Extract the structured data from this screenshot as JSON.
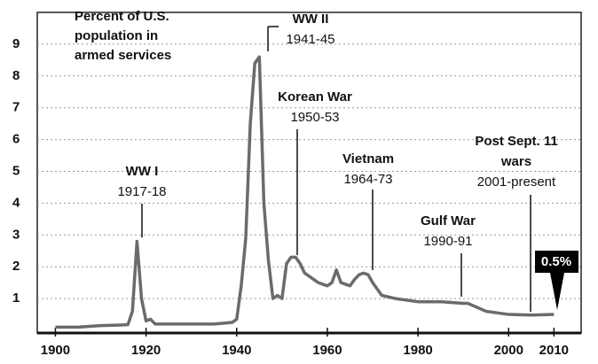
{
  "chart_data": {
    "type": "line",
    "title": [
      "Percent of U.S.",
      "population in",
      "armed services"
    ],
    "x": [
      1900,
      1905,
      1910,
      1915,
      1916,
      1917,
      1918,
      1919,
      1920,
      1921,
      1922,
      1925,
      1930,
      1935,
      1939,
      1940,
      1941,
      1942,
      1943,
      1944,
      1945,
      1946,
      1947,
      1948,
      1949,
      1950,
      1951,
      1952,
      1953,
      1954,
      1955,
      1956,
      1957,
      1958,
      1959,
      1960,
      1961,
      1962,
      1963,
      1964,
      1965,
      1966,
      1967,
      1968,
      1969,
      1970,
      1971,
      1972,
      1975,
      1980,
      1985,
      1990,
      1991,
      1995,
      2000,
      2005,
      2010
    ],
    "series": [
      {
        "name": "armed services",
        "color": "#6b6b6b",
        "values": [
          0.1,
          0.1,
          0.15,
          0.17,
          0.18,
          0.6,
          2.8,
          1.0,
          0.3,
          0.35,
          0.2,
          0.2,
          0.2,
          0.2,
          0.25,
          0.35,
          1.4,
          2.9,
          6.5,
          8.4,
          8.6,
          4.0,
          2.2,
          1.0,
          1.1,
          1.0,
          2.1,
          2.3,
          2.3,
          2.1,
          1.8,
          1.7,
          1.6,
          1.5,
          1.45,
          1.4,
          1.5,
          1.9,
          1.5,
          1.45,
          1.4,
          1.6,
          1.75,
          1.8,
          1.75,
          1.5,
          1.3,
          1.1,
          1.0,
          0.9,
          0.9,
          0.85,
          0.85,
          0.6,
          0.5,
          0.48,
          0.5
        ]
      }
    ],
    "xlim": [
      1896,
      2016
    ],
    "ylim": [
      0,
      10
    ],
    "xticks": [
      1900,
      1920,
      1940,
      1960,
      1980,
      2000,
      2010
    ],
    "yticks": [
      1,
      2,
      3,
      4,
      5,
      6,
      7,
      8,
      9
    ],
    "grid": true,
    "annotations": [
      {
        "label": [
          "WW I"
        ],
        "period": "1917-18"
      },
      {
        "label": [
          "WW II"
        ],
        "period": "1941-45"
      },
      {
        "label": [
          "Korean War"
        ],
        "period": "1950-53"
      },
      {
        "label": [
          "Vietnam"
        ],
        "period": "1964-73"
      },
      {
        "label": [
          "Gulf War"
        ],
        "period": "1990-91"
      },
      {
        "label": [
          "Post Sept. 11",
          "wars"
        ],
        "period": "2001-present"
      }
    ],
    "end_label": "0.5%"
  }
}
